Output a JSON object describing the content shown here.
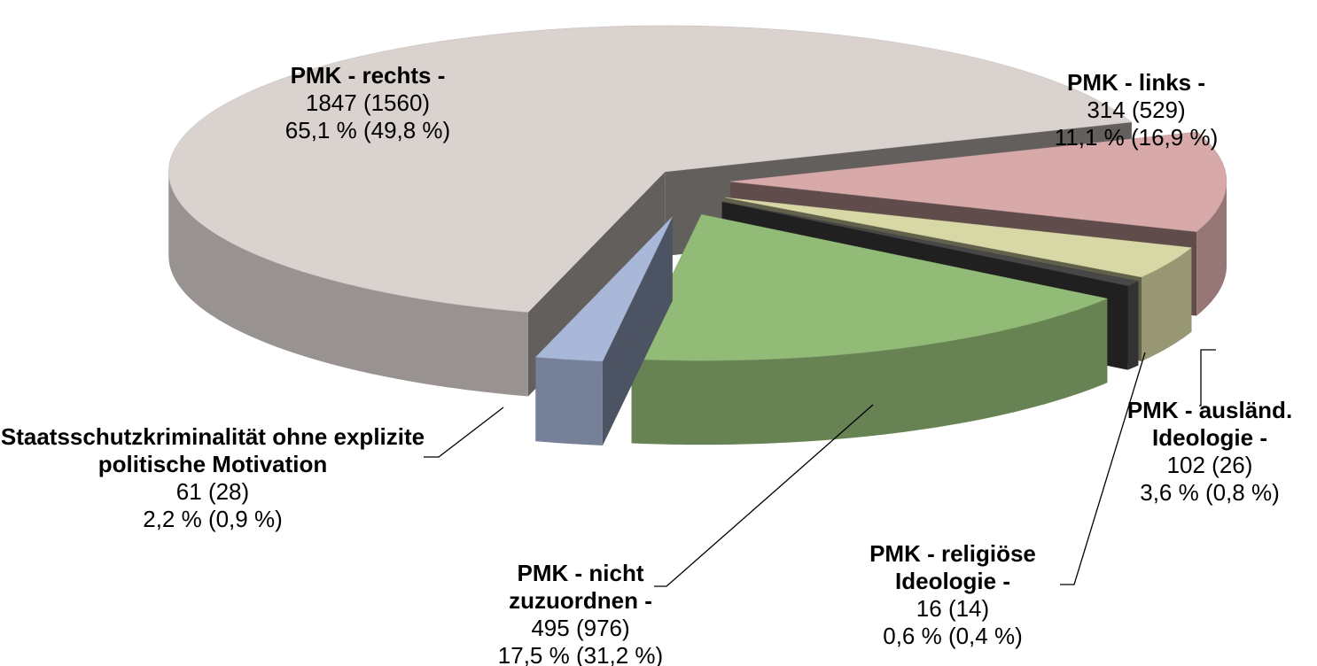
{
  "chart_data": {
    "type": "pie",
    "categories": [
      "PMK - rechts -",
      "PMK - links -",
      "PMK - ausländ. Ideologie -",
      "PMK - religiöse Ideologie -",
      "PMK - nicht zuzuordnen -",
      "Staatsschutzkriminalität ohne explizite politische Motivation"
    ],
    "values": [
      65.1,
      11.1,
      3.6,
      0.6,
      17.5,
      2.2
    ],
    "value_labels": [
      "65,1 % (49,8 %)",
      "11,1 % (16,9 %)",
      "3,6 % (0,8 %)",
      "0,6 % (0,4 %)",
      "17,5 % (31,2 %)",
      "2,2 % (0,9 %)"
    ],
    "count_labels": [
      "1847 (1560)",
      "314 (529)",
      "102 (26)",
      "16 (14)",
      "495 (976)",
      "61 (28)"
    ],
    "colors": [
      "#d9d2ce",
      "#d7a9a9",
      "#d8d8a6",
      "#474747",
      "#93bb78",
      "#a9b8d9"
    ]
  }
}
